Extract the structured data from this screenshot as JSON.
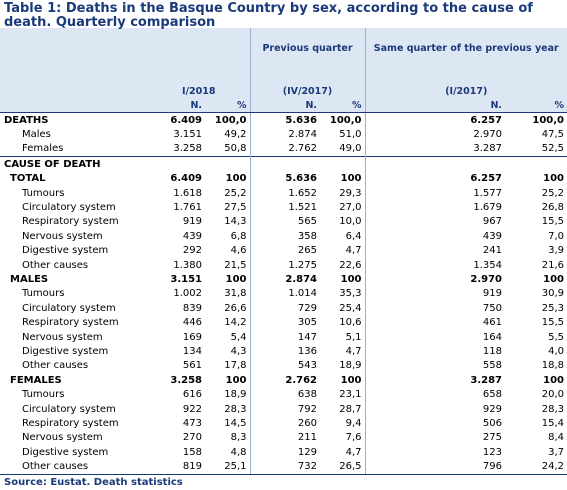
{
  "title": "Table 1: Deaths in the Basque Country by sex, according to the cause of death. Quarterly comparison",
  "header": {
    "col1": "I/2018",
    "col2_top": "Previous quarter",
    "col2": "(IV/2017)",
    "col3_top": "Same quarter of the previous year",
    "col3": "(I/2017)",
    "n": "N.",
    "pct": "%"
  },
  "rows": [
    {
      "type": "section",
      "label": "DEATHS",
      "v": [
        "6.409",
        "100,0",
        "5.636",
        "100,0",
        "6.257",
        "100,0"
      ]
    },
    {
      "type": "item",
      "label": "Males",
      "v": [
        "3.151",
        "49,2",
        "2.874",
        "51,0",
        "2.970",
        "47,5"
      ]
    },
    {
      "type": "item",
      "label": "Females",
      "v": [
        "3.258",
        "50,8",
        "2.762",
        "49,0",
        "3.287",
        "52,5"
      ]
    },
    {
      "type": "section",
      "label": "CAUSE OF DEATH",
      "v": [
        "",
        "",
        "",
        "",
        "",
        ""
      ]
    },
    {
      "type": "group",
      "label": "TOTAL",
      "v": [
        "6.409",
        "100",
        "5.636",
        "100",
        "6.257",
        "100"
      ]
    },
    {
      "type": "sub",
      "label": "Tumours",
      "v": [
        "1.618",
        "25,2",
        "1.652",
        "29,3",
        "1.577",
        "25,2"
      ]
    },
    {
      "type": "sub",
      "label": "Circulatory system",
      "v": [
        "1.761",
        "27,5",
        "1.521",
        "27,0",
        "1.679",
        "26,8"
      ]
    },
    {
      "type": "sub",
      "label": "Respiratory system",
      "v": [
        "919",
        "14,3",
        "565",
        "10,0",
        "967",
        "15,5"
      ]
    },
    {
      "type": "sub",
      "label": "Nervous system",
      "v": [
        "439",
        "6,8",
        "358",
        "6,4",
        "439",
        "7,0"
      ]
    },
    {
      "type": "sub",
      "label": "Digestive system",
      "v": [
        "292",
        "4,6",
        "265",
        "4,7",
        "241",
        "3,9"
      ]
    },
    {
      "type": "sub",
      "label": "Other causes",
      "v": [
        "1.380",
        "21,5",
        "1.275",
        "22,6",
        "1.354",
        "21,6"
      ]
    },
    {
      "type": "group",
      "label": "MALES",
      "v": [
        "3.151",
        "100",
        "2.874",
        "100",
        "2.970",
        "100"
      ]
    },
    {
      "type": "sub",
      "label": "Tumours",
      "v": [
        "1.002",
        "31,8",
        "1.014",
        "35,3",
        "919",
        "30,9"
      ]
    },
    {
      "type": "sub",
      "label": "Circulatory system",
      "v": [
        "839",
        "26,6",
        "729",
        "25,4",
        "750",
        "25,3"
      ]
    },
    {
      "type": "sub",
      "label": "Respiratory system",
      "v": [
        "446",
        "14,2",
        "305",
        "10,6",
        "461",
        "15,5"
      ]
    },
    {
      "type": "sub",
      "label": "Nervous system",
      "v": [
        "169",
        "5,4",
        "147",
        "5,1",
        "164",
        "5,5"
      ]
    },
    {
      "type": "sub",
      "label": "Digestive system",
      "v": [
        "134",
        "4,3",
        "136",
        "4,7",
        "118",
        "4,0"
      ]
    },
    {
      "type": "sub",
      "label": "Other causes",
      "v": [
        "561",
        "17,8",
        "543",
        "18,9",
        "558",
        "18,8"
      ]
    },
    {
      "type": "group",
      "label": "FEMALES",
      "v": [
        "3.258",
        "100",
        "2.762",
        "100",
        "3.287",
        "100"
      ]
    },
    {
      "type": "sub",
      "label": "Tumours",
      "v": [
        "616",
        "18,9",
        "638",
        "23,1",
        "658",
        "20,0"
      ]
    },
    {
      "type": "sub",
      "label": "Circulatory system",
      "v": [
        "922",
        "28,3",
        "792",
        "28,7",
        "929",
        "28,3"
      ]
    },
    {
      "type": "sub",
      "label": "Respiratory system",
      "v": [
        "473",
        "14,5",
        "260",
        "9,4",
        "506",
        "15,4"
      ]
    },
    {
      "type": "sub",
      "label": "Nervous system",
      "v": [
        "270",
        "8,3",
        "211",
        "7,6",
        "275",
        "8,4"
      ]
    },
    {
      "type": "sub",
      "label": "Digestive system",
      "v": [
        "158",
        "4,8",
        "129",
        "4,7",
        "123",
        "3,7"
      ]
    },
    {
      "type": "sub",
      "label": "Other causes",
      "v": [
        "819",
        "25,1",
        "732",
        "26,5",
        "796",
        "24,2"
      ]
    }
  ],
  "source": "Source: Eustat. Death statistics"
}
